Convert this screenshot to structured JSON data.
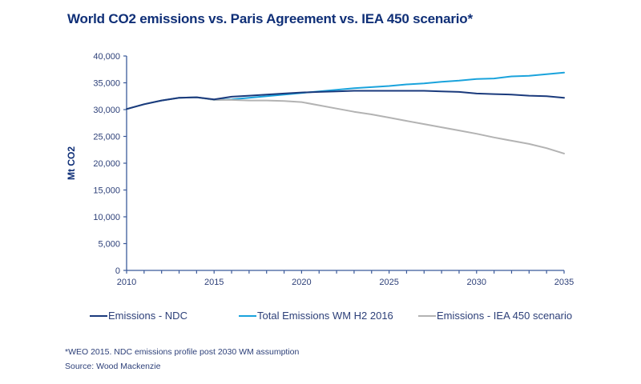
{
  "chart_data": {
    "type": "line",
    "title": "World CO2 emissions vs. Paris Agreement vs. IEA 450 scenario*",
    "xlabel": "",
    "ylabel": "Mt CO2",
    "xlim": [
      2010,
      2035
    ],
    "ylim": [
      0,
      40000
    ],
    "x_ticks": [
      2010,
      2015,
      2020,
      2025,
      2030,
      2035
    ],
    "x_tick_labels": [
      "2010",
      "2015",
      "2020",
      "2025",
      "2030",
      "2035"
    ],
    "y_ticks": [
      0,
      5000,
      10000,
      15000,
      20000,
      25000,
      30000,
      35000,
      40000
    ],
    "y_tick_labels": [
      "0",
      "5,000",
      "10,000",
      "15,000",
      "20,000",
      "25,000",
      "30,000",
      "35,000",
      "40,000"
    ],
    "grid": false,
    "legend_position": "bottom",
    "x": [
      2010,
      2011,
      2012,
      2013,
      2014,
      2015,
      2016,
      2017,
      2018,
      2019,
      2020,
      2021,
      2022,
      2023,
      2024,
      2025,
      2026,
      2027,
      2028,
      2029,
      2030,
      2031,
      2032,
      2033,
      2034,
      2035
    ],
    "series": [
      {
        "name": "Total Emissions WM H2 2016",
        "color": "#1aa3dc",
        "values": [
          30100,
          31000,
          31700,
          32200,
          32300,
          31800,
          31900,
          32200,
          32500,
          32800,
          33100,
          33400,
          33700,
          34000,
          34200,
          34400,
          34700,
          34900,
          35200,
          35400,
          35700,
          35800,
          36200,
          36300,
          36600,
          36900
        ]
      },
      {
        "name": "Emissions - NDC",
        "color": "#1a3a7c",
        "values": [
          30100,
          31000,
          31700,
          32200,
          32300,
          31900,
          32400,
          32600,
          32800,
          33000,
          33200,
          33300,
          33400,
          33500,
          33500,
          33500,
          33500,
          33500,
          33400,
          33300,
          33000,
          32900,
          32800,
          32600,
          32500,
          32200
        ]
      },
      {
        "name": "Emissions - IEA 450 scenario",
        "color": "#b3b3b3",
        "values": [
          30100,
          31000,
          31700,
          32200,
          32300,
          31800,
          31800,
          31700,
          31700,
          31600,
          31400,
          30800,
          30200,
          29600,
          29100,
          28500,
          27900,
          27300,
          26700,
          26100,
          25500,
          24800,
          24200,
          23600,
          22800,
          21800
        ]
      }
    ],
    "legend": [
      {
        "label": "Emissions - NDC",
        "color": "#1a3a7c"
      },
      {
        "label": "Total Emissions WM H2 2016",
        "color": "#1aa3dc"
      },
      {
        "label": "Emissions - IEA 450 scenario",
        "color": "#b3b3b3"
      }
    ],
    "annotations": [
      "*WEO 2015. NDC emissions profile post 2030 WM assumption",
      "Source: Wood Mackenzie"
    ]
  },
  "colors": {
    "title": "#0f2f77",
    "axis": "#3b5a9a",
    "text": "#2c3f78"
  }
}
